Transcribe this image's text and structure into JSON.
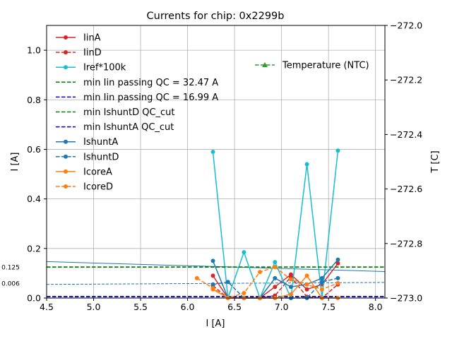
{
  "chart_data": {
    "type": "line",
    "title": "Currents for chip: 0x2299b",
    "xlabel": "I [A]",
    "ylabel": "I [A]",
    "y2label": "T [C]",
    "xlim": [
      4.5,
      8.1
    ],
    "ylim": [
      0,
      1.1
    ],
    "y2lim": [
      -273.0,
      -272.0
    ],
    "grid": true,
    "xticks": [
      4.5,
      5.0,
      5.5,
      6.0,
      6.5,
      7.0,
      7.5,
      8.0
    ],
    "xtick_labels": [
      "4.5",
      "5.0",
      "5.5",
      "6.0",
      "6.5",
      "7.0",
      "7.5",
      "8.0"
    ],
    "yticks": [
      0.0,
      0.2,
      0.4,
      0.6,
      0.8,
      1.0
    ],
    "ytick_labels": [
      "0.0",
      "0.2",
      "0.4",
      "0.6",
      "0.8",
      "1.0"
    ],
    "y2ticks": [
      -273.0,
      -272.8,
      -272.6,
      -272.4,
      -272.2,
      -272.0
    ],
    "y2tick_labels": [
      "−273.0",
      "−272.8",
      "−272.6",
      "−272.4",
      "−272.2",
      "−272.0"
    ],
    "legend_position": "upper-left",
    "legend2_position": "upper-right",
    "series": [
      {
        "name": "IinA",
        "color": "#d62728",
        "style": "solid",
        "marker": "circle",
        "axis": "left",
        "x": [
          6.27,
          6.43,
          6.6,
          6.77,
          6.93,
          7.1,
          7.27,
          7.43,
          7.6
        ],
        "y": [
          0.09,
          0.0,
          0.0,
          0.0,
          0.045,
          0.095,
          0.035,
          0.055,
          0.14
        ]
      },
      {
        "name": "IinD",
        "color": "#d62728",
        "style": "dashed",
        "marker": "circle",
        "axis": "left",
        "x": [
          6.27,
          6.43,
          6.6,
          6.77,
          6.93,
          7.1,
          7.27,
          7.43,
          7.6
        ],
        "y": [
          0.05,
          0.0,
          0.0,
          0.0,
          0.01,
          0.085,
          0.005,
          0.0,
          0.055
        ]
      },
      {
        "name": "Iref*100k",
        "color": "#17becf",
        "style": "solid",
        "marker": "circle",
        "axis": "left",
        "x": [
          6.27,
          6.43,
          6.6,
          6.77,
          6.93,
          7.1,
          7.27,
          7.43,
          7.6
        ],
        "y": [
          0.59,
          0.0,
          0.185,
          0.0,
          0.145,
          0.0,
          0.54,
          0.0,
          0.595
        ]
      },
      {
        "name": "min Iin passing QC = 32.47 A",
        "color": "#008000",
        "style": "dashed",
        "marker": "none",
        "axis": "left",
        "x": [
          4.5,
          8.1
        ],
        "y": [
          0.125,
          0.125
        ]
      },
      {
        "name": "min Iin passing QC = 16.99 A",
        "color": "#0000cc",
        "style": "dashed",
        "marker": "none",
        "axis": "left",
        "x": [
          4.5,
          8.1
        ],
        "y": [
          0.005,
          0.005
        ]
      },
      {
        "name": "min IshuntD QC_cut",
        "color": "#008000",
        "style": "dashed",
        "marker": "none",
        "axis": "left",
        "x": [
          4.5,
          8.1
        ],
        "y": [
          0.125,
          0.125
        ]
      },
      {
        "name": "min IshuntA QC_cut",
        "color": "#0000cc",
        "style": "dashed",
        "marker": "none",
        "axis": "left",
        "x": [
          4.5,
          8.1
        ],
        "y": [
          0.006,
          0.006
        ]
      },
      {
        "name": "IshuntA",
        "color": "#1f77b4",
        "style": "solid",
        "marker": "circle",
        "axis": "left",
        "x": [
          6.27,
          6.43,
          6.6,
          6.77,
          6.93,
          7.1,
          7.27,
          7.43,
          7.6
        ],
        "y": [
          0.15,
          0.0,
          0.0,
          0.0,
          0.08,
          0.045,
          0.055,
          0.08,
          0.155
        ]
      },
      {
        "name": "IshuntD",
        "color": "#1f77b4",
        "style": "dashed",
        "marker": "circle",
        "axis": "left",
        "x": [
          6.27,
          6.43,
          6.6,
          6.77,
          6.93,
          7.1,
          7.27,
          7.43,
          7.6
        ],
        "y": [
          0.055,
          0.065,
          0.0,
          0.0,
          0.0,
          0.0,
          0.0,
          0.065,
          0.08
        ]
      },
      {
        "name": "IcoreA",
        "color": "#ff7f0e",
        "style": "solid",
        "marker": "circle",
        "axis": "left",
        "x": [
          6.27,
          6.43,
          6.6,
          6.77,
          6.93,
          7.1,
          7.27,
          7.43,
          7.6
        ],
        "y": [
          0.035,
          0.0,
          0.0,
          0.0,
          0.0,
          0.015,
          0.09,
          0.0,
          0.0
        ]
      },
      {
        "name": "IcoreD",
        "color": "#ff7f0e",
        "style": "dashed",
        "marker": "circle",
        "axis": "left",
        "x": [
          6.1,
          6.27,
          6.43,
          6.6,
          6.77,
          6.93,
          7.1,
          7.27,
          7.43,
          7.6
        ],
        "y": [
          0.08,
          0.04,
          0.0,
          0.02,
          0.105,
          0.125,
          0.075,
          0.055,
          0.035,
          0.06
        ]
      },
      {
        "name": "Temperature (NTC)",
        "color": "#2ca02c",
        "style": "dashed",
        "marker": "triangle",
        "axis": "right",
        "x": [],
        "y": []
      }
    ],
    "fit_lines": [
      {
        "color": "#1f77b4",
        "style": "solid",
        "x": [
          4.5,
          8.1
        ],
        "y": [
          0.147,
          0.107
        ]
      },
      {
        "color": "#1f77b4",
        "style": "dashed",
        "x": [
          4.5,
          8.1
        ],
        "y": [
          0.055,
          0.063
        ]
      }
    ],
    "annotations": [
      {
        "text": "0.125",
        "y": 0.125
      },
      {
        "text": "0.006",
        "y": 0.06
      }
    ]
  }
}
